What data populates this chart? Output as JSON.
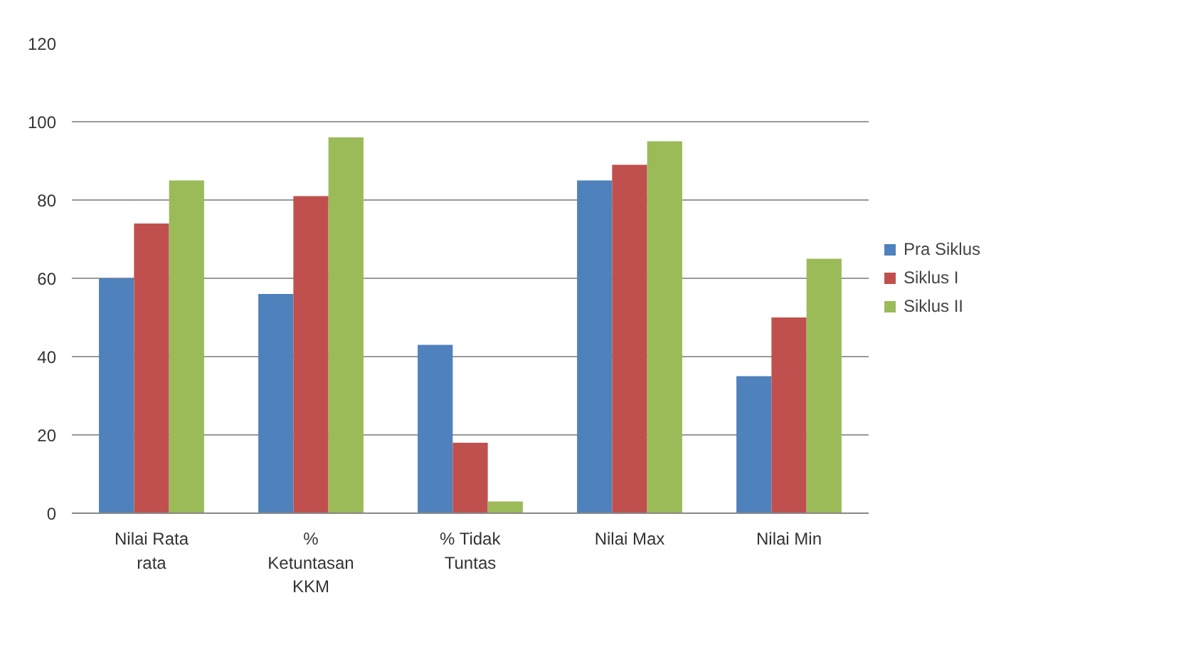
{
  "chart_data": {
    "type": "bar",
    "categories": [
      "Nilai Rata rata",
      "% Ketuntasan KKM",
      "% Tidak Tuntas",
      "Nilai Max",
      "Nilai Min"
    ],
    "series": [
      {
        "name": "Pra Siklus",
        "color": "#4f81bd",
        "values": [
          60,
          56,
          43,
          85,
          35
        ]
      },
      {
        "name": "Siklus I",
        "color": "#c0504d",
        "values": [
          74,
          81,
          18,
          89,
          50
        ]
      },
      {
        "name": "Siklus II",
        "color": "#9bbb59",
        "values": [
          85,
          96,
          3,
          95,
          65
        ]
      }
    ],
    "ylim": [
      0,
      120
    ],
    "yticks": [
      0,
      20,
      40,
      60,
      80,
      100,
      120
    ],
    "grid": "y",
    "legend": "right"
  }
}
